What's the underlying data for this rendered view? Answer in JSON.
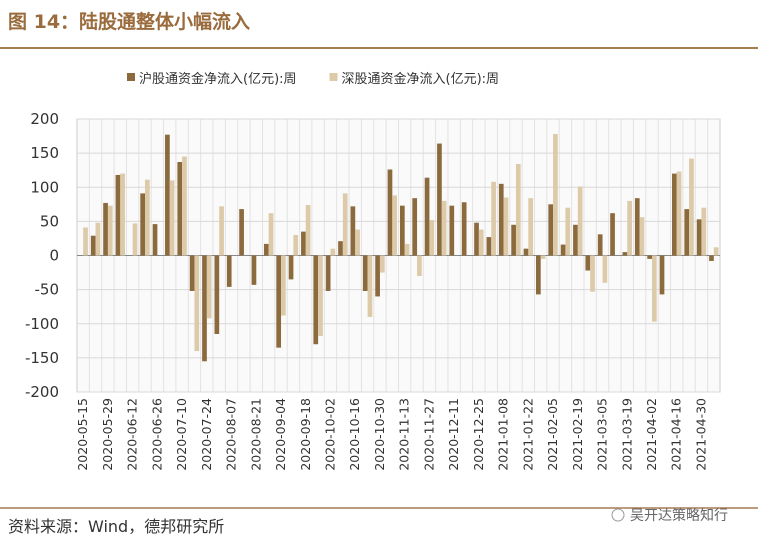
{
  "chart_data": {
    "type": "bar",
    "title": "图 14：陆股通整体小幅流入",
    "source": "资料来源：Wind，德邦研究所",
    "watermark": "吴开达策略知行",
    "categories": [
      "2020-05-15",
      null,
      "2020-05-29",
      null,
      "2020-06-12",
      null,
      "2020-06-26",
      null,
      "2020-07-10",
      null,
      "2020-07-24",
      null,
      "2020-08-07",
      null,
      "2020-08-21",
      null,
      "2020-09-04",
      null,
      "2020-09-18",
      null,
      "2020-10-02",
      null,
      "2020-10-16",
      null,
      "2020-10-30",
      null,
      "2020-11-13",
      null,
      "2020-11-27",
      null,
      "2020-12-11",
      null,
      "2020-12-25",
      null,
      "2021-01-08",
      null,
      "2021-01-22",
      null,
      "2021-02-05",
      null,
      "2021-02-19",
      null,
      "2021-03-05",
      null,
      "2021-03-19",
      null,
      "2021-04-02",
      null,
      "2021-04-16",
      null,
      "2021-04-30",
      null
    ],
    "series": [
      {
        "name": "沪股通资金净流入(亿元):周",
        "color": "#8b6a3e",
        "values": [
          0,
          29,
          77,
          118,
          0,
          91,
          46,
          177,
          137,
          -52,
          -155,
          -115,
          -46,
          68,
          -43,
          17,
          -135,
          -35,
          35,
          -130,
          -52,
          21,
          72,
          -52,
          -60,
          126,
          73,
          84,
          114,
          164,
          73,
          78,
          48,
          27,
          105,
          45,
          10,
          -57,
          75,
          16,
          45,
          -22,
          31,
          62,
          5,
          84,
          -5,
          -57,
          120,
          68,
          53,
          -8
        ]
      },
      {
        "name": "深股通资金净流入(亿元):周",
        "color": "#dccaa8",
        "values": [
          41,
          48,
          73,
          120,
          47,
          111,
          0,
          110,
          145,
          -140,
          -92,
          72,
          0,
          0,
          0,
          62,
          -88,
          30,
          74,
          -118,
          10,
          91,
          38,
          -90,
          -25,
          88,
          17,
          -30,
          52,
          80,
          0,
          0,
          38,
          108,
          85,
          134,
          84,
          -5,
          178,
          70,
          101,
          -53,
          -40,
          0,
          80,
          56,
          -97,
          0,
          123,
          142,
          70,
          12
        ]
      }
    ],
    "ylim": [
      -200,
      200
    ],
    "yticks": [
      200,
      150,
      100,
      50,
      0,
      -50,
      -100,
      -150,
      -200
    ],
    "grid": true
  }
}
